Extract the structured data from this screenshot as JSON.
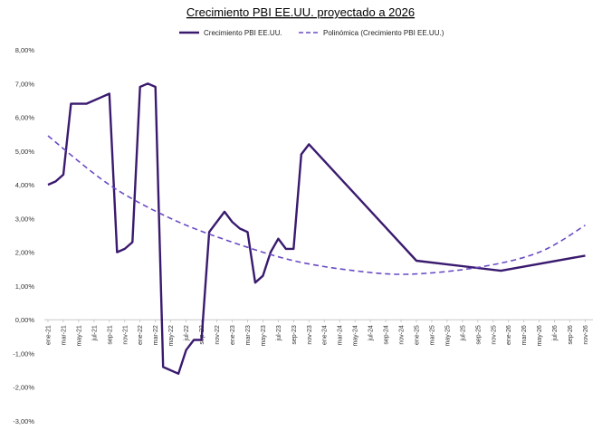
{
  "colors": {
    "series": "#3a1a6e",
    "trend": "#6a4bc4",
    "grid": "#d0d0d0",
    "axis": "#333333"
  },
  "chart_data": {
    "type": "line",
    "title": "Crecimiento PBI EE.UU. proyectado a 2026",
    "legend": [
      "Crecimiento PBI EE.UU.",
      "Polinómica (Crecimiento PBI EE.UU.)"
    ],
    "legend_position": "top",
    "ylim": [
      -3.0,
      8.0
    ],
    "y_ticks": [
      "8,00%",
      "7,00%",
      "6,00%",
      "5,00%",
      "4,00%",
      "3,00%",
      "2,00%",
      "1,00%",
      "0,00%",
      "-1,00%",
      "-2,00%",
      "-3,00%"
    ],
    "x_ticks": [
      "ene-21",
      "mar-21",
      "may-21",
      "jul-21",
      "sep-21",
      "nov-21",
      "ene-22",
      "mar-22",
      "may-22",
      "jul-22",
      "sep-22",
      "nov-22",
      "ene-23",
      "mar-23",
      "may-23",
      "jul-23",
      "sep-23",
      "nov-23",
      "ene-24",
      "mar-24",
      "may-24",
      "jul-24",
      "sep-24",
      "nov-24",
      "ene-25",
      "mar-25",
      "may-25",
      "jul-25",
      "sep-25",
      "nov-25",
      "ene-26",
      "mar-26",
      "may-26",
      "jul-26",
      "sep-26",
      "nov-26"
    ],
    "series": [
      {
        "name": "Crecimiento PBI EE.UU.",
        "style": "solid",
        "points": [
          [
            "ene-21",
            4.0
          ],
          [
            "feb-21",
            4.1
          ],
          [
            "mar-21",
            4.3
          ],
          [
            "abr-21",
            6.4
          ],
          [
            "may-21",
            6.4
          ],
          [
            "jun-21",
            6.4
          ],
          [
            "ago-21",
            6.6
          ],
          [
            "sep-21",
            6.7
          ],
          [
            "oct-21",
            2.0
          ],
          [
            "nov-21",
            2.1
          ],
          [
            "dic-21",
            2.3
          ],
          [
            "ene-22",
            6.9
          ],
          [
            "feb-22",
            7.0
          ],
          [
            "mar-22",
            6.9
          ],
          [
            "abr-22",
            -1.4
          ],
          [
            "jun-22",
            -1.6
          ],
          [
            "jul-22",
            -0.9
          ],
          [
            "ago-22",
            -0.6
          ],
          [
            "sep-22",
            -0.6
          ],
          [
            "oct-22",
            2.6
          ],
          [
            "dic-22",
            3.2
          ],
          [
            "ene-23",
            2.9
          ],
          [
            "feb-23",
            2.7
          ],
          [
            "mar-23",
            2.6
          ],
          [
            "abr-23",
            1.1
          ],
          [
            "may-23",
            1.3
          ],
          [
            "jun-23",
            2.0
          ],
          [
            "jul-23",
            2.4
          ],
          [
            "ago-23",
            2.1
          ],
          [
            "sep-23",
            2.1
          ],
          [
            "oct-23",
            4.9
          ],
          [
            "nov-23",
            5.2
          ],
          [
            "ene-25",
            1.75
          ],
          [
            "dic-25",
            1.45
          ],
          [
            "nov-26",
            1.9
          ]
        ]
      },
      {
        "name": "Polinómica (Crecimiento PBI EE.UU.)",
        "style": "dashed",
        "points": [
          [
            "ene-21",
            5.45
          ],
          [
            "sep-21",
            4.0
          ],
          [
            "may-22",
            3.0
          ],
          [
            "ene-23",
            2.3
          ],
          [
            "sep-23",
            1.75
          ],
          [
            "may-24",
            1.45
          ],
          [
            "dic-24",
            1.35
          ],
          [
            "sep-25",
            1.55
          ],
          [
            "may-26",
            2.0
          ],
          [
            "nov-26",
            2.8
          ]
        ]
      }
    ]
  }
}
